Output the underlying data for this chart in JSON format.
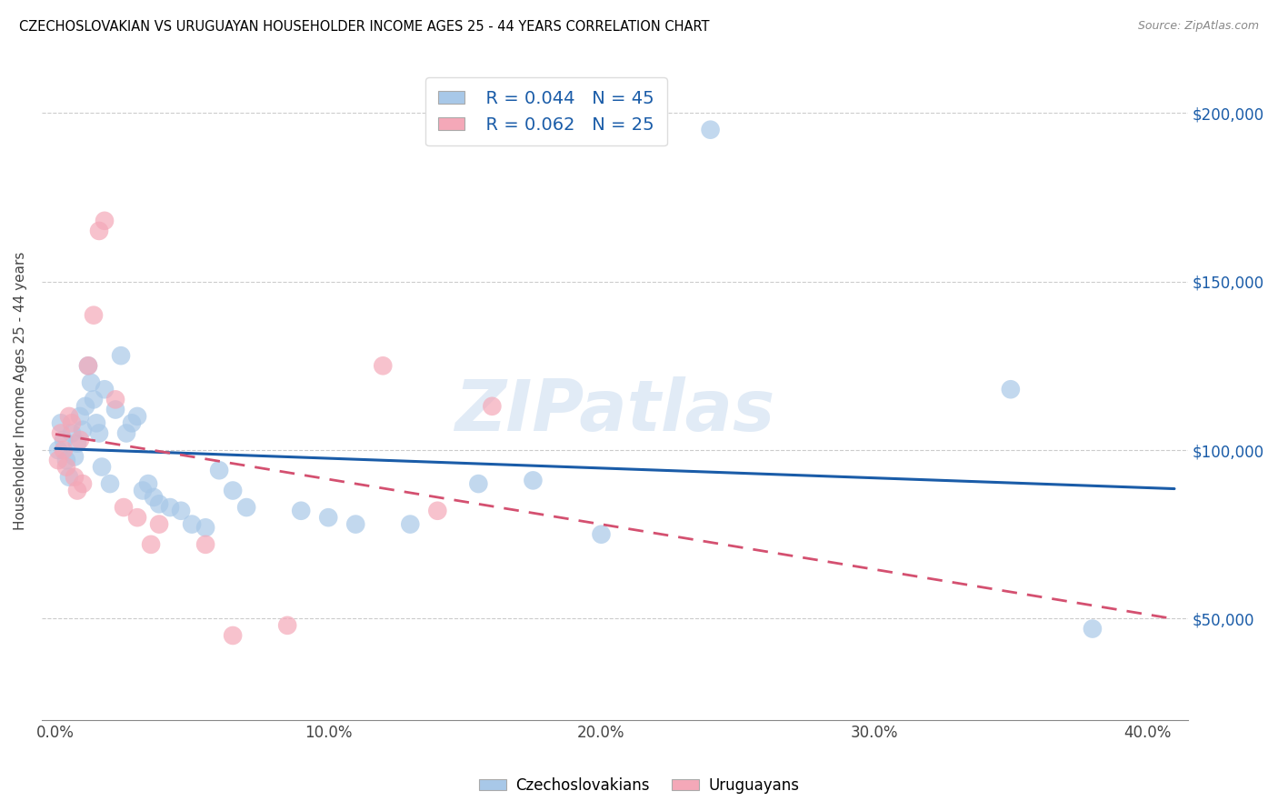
{
  "title": "CZECHOSLOVAKIAN VS URUGUAYAN HOUSEHOLDER INCOME AGES 25 - 44 YEARS CORRELATION CHART",
  "source": "Source: ZipAtlas.com",
  "ylabel": "Householder Income Ages 25 - 44 years",
  "xlabel_ticks": [
    "0.0%",
    "10.0%",
    "20.0%",
    "30.0%",
    "40.0%"
  ],
  "xlabel_vals": [
    0.0,
    0.1,
    0.2,
    0.3,
    0.4
  ],
  "ytick_labels": [
    "$50,000",
    "$100,000",
    "$150,000",
    "$200,000"
  ],
  "ytick_vals": [
    50000,
    100000,
    150000,
    200000
  ],
  "ylim": [
    20000,
    215000
  ],
  "xlim": [
    -0.005,
    0.415
  ],
  "legend_blue_r": "R = 0.044",
  "legend_blue_n": "N = 45",
  "legend_pink_r": "R = 0.062",
  "legend_pink_n": "N = 25",
  "blue_color": "#a8c8e8",
  "pink_color": "#f4a8b8",
  "blue_line_color": "#1a5ca8",
  "pink_line_color": "#d45070",
  "background_color": "#ffffff",
  "watermark": "ZIPatlas",
  "grid_color": "#cccccc",
  "blue_dots_x": [
    0.001,
    0.002,
    0.003,
    0.004,
    0.005,
    0.006,
    0.007,
    0.008,
    0.009,
    0.01,
    0.011,
    0.012,
    0.013,
    0.014,
    0.015,
    0.016,
    0.017,
    0.018,
    0.02,
    0.022,
    0.024,
    0.026,
    0.028,
    0.03,
    0.032,
    0.034,
    0.036,
    0.038,
    0.042,
    0.046,
    0.05,
    0.055,
    0.06,
    0.065,
    0.07,
    0.09,
    0.1,
    0.11,
    0.13,
    0.155,
    0.175,
    0.2,
    0.24,
    0.35,
    0.38
  ],
  "blue_dots_y": [
    100000,
    108000,
    103000,
    97000,
    92000,
    105000,
    98000,
    102000,
    110000,
    106000,
    113000,
    125000,
    120000,
    115000,
    108000,
    105000,
    95000,
    118000,
    90000,
    112000,
    128000,
    105000,
    108000,
    110000,
    88000,
    90000,
    86000,
    84000,
    83000,
    82000,
    78000,
    77000,
    94000,
    88000,
    83000,
    82000,
    80000,
    78000,
    78000,
    90000,
    91000,
    75000,
    195000,
    118000,
    47000
  ],
  "pink_dots_x": [
    0.001,
    0.002,
    0.003,
    0.004,
    0.005,
    0.006,
    0.007,
    0.008,
    0.009,
    0.01,
    0.012,
    0.014,
    0.016,
    0.018,
    0.022,
    0.025,
    0.03,
    0.035,
    0.038,
    0.055,
    0.065,
    0.085,
    0.12,
    0.14,
    0.16
  ],
  "pink_dots_y": [
    97000,
    105000,
    100000,
    95000,
    110000,
    108000,
    92000,
    88000,
    103000,
    90000,
    125000,
    140000,
    165000,
    168000,
    115000,
    83000,
    80000,
    72000,
    78000,
    72000,
    45000,
    48000,
    125000,
    82000,
    113000
  ]
}
